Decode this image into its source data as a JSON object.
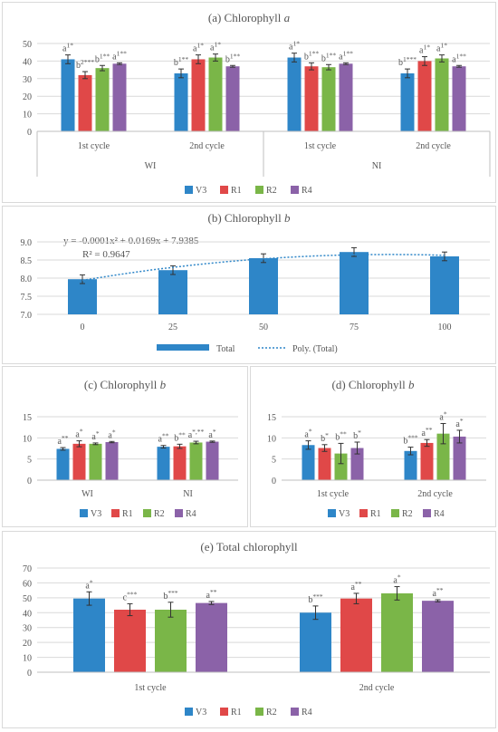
{
  "colors": {
    "V3": "#2e86c8",
    "R1": "#e04848",
    "R2": "#7ab648",
    "R4": "#8b62a8",
    "grid": "#d9d9d9",
    "axis": "#bfbfbf"
  },
  "chart_data": [
    {
      "id": "a",
      "type": "bar",
      "title": "(a) Chlorophyll a",
      "title_main": "(a) Chlorophyll ",
      "title_italic": "a",
      "ylim": [
        0,
        50
      ],
      "yticks": [
        "0",
        "10",
        "20",
        "30",
        "40",
        "50"
      ],
      "categories": [
        "1st cycle",
        "2nd cycle",
        "1st cycle",
        "2nd cycle"
      ],
      "groups": [
        "WI",
        "NI"
      ],
      "legend": [
        "V3",
        "R1",
        "R2",
        "R4"
      ],
      "series": [
        {
          "name": "V3",
          "values": [
            41,
            33,
            42,
            33
          ],
          "errors": [
            2.5,
            2.5,
            2.5,
            2.5
          ],
          "labels": [
            "a1*",
            "b1**",
            "a1*",
            "b1***"
          ]
        },
        {
          "name": "R1",
          "values": [
            32,
            41,
            37,
            40
          ],
          "errors": [
            2,
            2.5,
            2,
            2.5
          ],
          "labels": [
            "b2***",
            "a1*",
            "b1**",
            "a1*"
          ]
        },
        {
          "name": "R2",
          "values": [
            36,
            42,
            36.5,
            41.5
          ],
          "errors": [
            1.5,
            2,
            1.5,
            2
          ],
          "labels": [
            "b1**",
            "a1*",
            "b1**",
            "a1*"
          ]
        },
        {
          "name": "R4",
          "values": [
            38.5,
            37,
            38.5,
            37
          ],
          "errors": [
            0.5,
            0.5,
            0.5,
            0.5
          ],
          "labels": [
            "a1**",
            "b1**",
            "a1**",
            "a1**"
          ]
        }
      ]
    },
    {
      "id": "b",
      "type": "bar",
      "title": "(b) Chlorophyll b",
      "title_main": "(b) Chlorophyll ",
      "title_italic": "b",
      "ylim": [
        7.0,
        9.0
      ],
      "yticks": [
        "7.0",
        "7.5",
        "8.0",
        "8.5",
        "9.0"
      ],
      "categories": [
        "0",
        "25",
        "50",
        "75",
        "100"
      ],
      "series": [
        {
          "name": "Total",
          "values": [
            7.97,
            8.22,
            8.55,
            8.72,
            8.6
          ],
          "errors": [
            0.12,
            0.12,
            0.12,
            0.12,
            0.12
          ]
        }
      ],
      "trend_name": "Poly. (Total)",
      "equation": "y = -0.0001x² + 0.0169x + 7.9385",
      "r2": "R² = 0.9647",
      "coefficients": [
        -0.0001,
        0.0169,
        7.9385
      ]
    },
    {
      "id": "c",
      "type": "bar",
      "title": "(c) Chlorophyll b",
      "title_main": "(c) Chlorophyll ",
      "title_italic": "b",
      "ylim": [
        0,
        15
      ],
      "yticks": [
        "0",
        "5",
        "10",
        "15"
      ],
      "categories": [
        "WI",
        "NI"
      ],
      "legend": [
        "V3",
        "R1",
        "R2",
        "R4"
      ],
      "series": [
        {
          "name": "V3",
          "values": [
            7.4,
            7.9
          ],
          "errors": [
            0.3,
            0.3
          ],
          "labels": [
            "a**",
            "a**"
          ]
        },
        {
          "name": "R1",
          "values": [
            8.6,
            8.0
          ],
          "errors": [
            0.7,
            0.5
          ],
          "labels": [
            "a*",
            "b**"
          ]
        },
        {
          "name": "R2",
          "values": [
            8.6,
            8.9
          ],
          "errors": [
            0.2,
            0.3
          ],
          "labels": [
            "a*",
            "a*,**"
          ]
        },
        {
          "name": "R4",
          "values": [
            9.0,
            9.1
          ],
          "errors": [
            0.15,
            0.15
          ],
          "labels": [
            "a*",
            "a*"
          ]
        }
      ]
    },
    {
      "id": "d",
      "type": "bar",
      "title": "(d) Chlorophyll b",
      "title_main": "(d) Chlorophyll ",
      "title_italic": "b",
      "ylim": [
        0,
        15
      ],
      "yticks": [
        "0",
        "5",
        "10",
        "15"
      ],
      "categories": [
        "1st cycle",
        "2nd cycle"
      ],
      "legend": [
        "V3",
        "R1",
        "R2",
        "R4"
      ],
      "series": [
        {
          "name": "V3",
          "values": [
            8.3,
            6.9
          ],
          "errors": [
            1.0,
            0.9
          ],
          "labels": [
            "a*",
            "b***"
          ]
        },
        {
          "name": "R1",
          "values": [
            7.6,
            8.8
          ],
          "errors": [
            0.8,
            0.8
          ],
          "labels": [
            "b*",
            "a**"
          ]
        },
        {
          "name": "R2",
          "values": [
            6.3,
            11.0
          ],
          "errors": [
            2.4,
            2.4
          ],
          "labels": [
            "b**",
            "a*"
          ]
        },
        {
          "name": "R4",
          "values": [
            7.6,
            10.3
          ],
          "errors": [
            1.4,
            1.5
          ],
          "labels": [
            "b*",
            "a*"
          ]
        }
      ]
    },
    {
      "id": "e",
      "type": "bar",
      "title": "(e) Total chlorophyll",
      "title_main": "(e) Total chlorophyll",
      "title_italic": "",
      "ylim": [
        0,
        70
      ],
      "yticks": [
        "0",
        "10",
        "20",
        "30",
        "40",
        "50",
        "60",
        "70"
      ],
      "categories": [
        "1st cycle",
        "2nd cycle"
      ],
      "legend": [
        "V3",
        "R1",
        "R2",
        "R4"
      ],
      "series": [
        {
          "name": "V3",
          "values": [
            49.5,
            40
          ],
          "errors": [
            4.5,
            4.5
          ],
          "labels": [
            "a*",
            "b***"
          ]
        },
        {
          "name": "R1",
          "values": [
            42,
            49.5
          ],
          "errors": [
            4,
            3.5
          ],
          "labels": [
            "c***",
            "a**"
          ]
        },
        {
          "name": "R2",
          "values": [
            42,
            53
          ],
          "errors": [
            5,
            4.5
          ],
          "labels": [
            "b***",
            "a*"
          ]
        },
        {
          "name": "R4",
          "values": [
            46.5,
            48
          ],
          "errors": [
            1,
            0.7
          ],
          "labels": [
            "a**",
            "a**"
          ]
        }
      ]
    }
  ]
}
